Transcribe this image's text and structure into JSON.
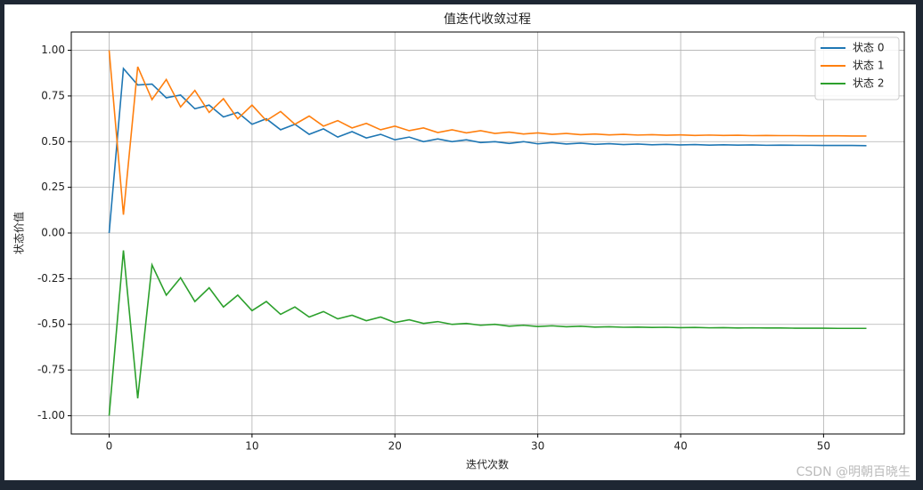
{
  "chart_data": {
    "type": "line",
    "title": "值迭代收敛过程",
    "xlabel": "迭代次数",
    "ylabel": "状态价值",
    "x": [
      0,
      1,
      2,
      3,
      4,
      5,
      6,
      7,
      8,
      9,
      10,
      11,
      12,
      13,
      14,
      15,
      16,
      17,
      18,
      19,
      20,
      21,
      22,
      23,
      24,
      25,
      26,
      27,
      28,
      29,
      30,
      31,
      32,
      33,
      34,
      35,
      36,
      37,
      38,
      39,
      40,
      41,
      42,
      43,
      44,
      45,
      46,
      47,
      48,
      49,
      50,
      51,
      52,
      53
    ],
    "series": [
      {
        "name": "状态 0",
        "color": "#1f77b4",
        "values": [
          0,
          0.9,
          0.81,
          0.815,
          0.74,
          0.755,
          0.68,
          0.7,
          0.635,
          0.66,
          0.595,
          0.625,
          0.565,
          0.595,
          0.54,
          0.57,
          0.525,
          0.555,
          0.52,
          0.54,
          0.51,
          0.525,
          0.5,
          0.515,
          0.5,
          0.51,
          0.495,
          0.5,
          0.49,
          0.5,
          0.488,
          0.495,
          0.487,
          0.492,
          0.485,
          0.489,
          0.484,
          0.487,
          0.483,
          0.485,
          0.482,
          0.484,
          0.481,
          0.483,
          0.481,
          0.482,
          0.48,
          0.481,
          0.48,
          0.48,
          0.479,
          0.479,
          0.479,
          0.478
        ]
      },
      {
        "name": "状态 1",
        "color": "#ff7f0e",
        "values": [
          1.0,
          0.1,
          0.91,
          0.73,
          0.84,
          0.69,
          0.78,
          0.66,
          0.735,
          0.625,
          0.7,
          0.615,
          0.665,
          0.595,
          0.64,
          0.585,
          0.615,
          0.575,
          0.6,
          0.565,
          0.585,
          0.56,
          0.575,
          0.55,
          0.565,
          0.548,
          0.56,
          0.545,
          0.552,
          0.542,
          0.548,
          0.54,
          0.545,
          0.538,
          0.542,
          0.537,
          0.54,
          0.536,
          0.538,
          0.535,
          0.537,
          0.534,
          0.536,
          0.534,
          0.535,
          0.533,
          0.534,
          0.533,
          0.533,
          0.532,
          0.532,
          0.532,
          0.531,
          0.531
        ]
      },
      {
        "name": "状态 2",
        "color": "#2ca02c",
        "values": [
          -1.0,
          -0.095,
          -0.905,
          -0.175,
          -0.34,
          -0.245,
          -0.375,
          -0.3,
          -0.405,
          -0.34,
          -0.425,
          -0.375,
          -0.445,
          -0.405,
          -0.46,
          -0.43,
          -0.47,
          -0.45,
          -0.48,
          -0.46,
          -0.49,
          -0.475,
          -0.495,
          -0.485,
          -0.5,
          -0.495,
          -0.505,
          -0.5,
          -0.51,
          -0.505,
          -0.512,
          -0.508,
          -0.513,
          -0.51,
          -0.515,
          -0.513,
          -0.516,
          -0.515,
          -0.517,
          -0.516,
          -0.518,
          -0.517,
          -0.519,
          -0.518,
          -0.52,
          -0.519,
          -0.52,
          -0.52,
          -0.521,
          -0.521,
          -0.521,
          -0.522,
          -0.522,
          -0.522
        ]
      }
    ],
    "xlim": [
      -2.65,
      55.65
    ],
    "ylim": [
      -1.1,
      1.1
    ],
    "xticks": [
      0,
      10,
      20,
      30,
      40,
      50
    ],
    "yticks": [
      {
        "value": -1,
        "label": "-1.00"
      },
      {
        "value": -0.75,
        "label": "-0.75"
      },
      {
        "value": -0.5,
        "label": "-0.50"
      },
      {
        "value": -0.25,
        "label": "-0.25"
      },
      {
        "value": 0,
        "label": "0.00"
      },
      {
        "value": 0.25,
        "label": "0.25"
      },
      {
        "value": 0.5,
        "label": "0.50"
      },
      {
        "value": 0.75,
        "label": "0.75"
      },
      {
        "value": 1,
        "label": "1.00"
      }
    ],
    "grid": true,
    "legend": "upper right",
    "watermark": "CSDN @明朝百晓生"
  }
}
